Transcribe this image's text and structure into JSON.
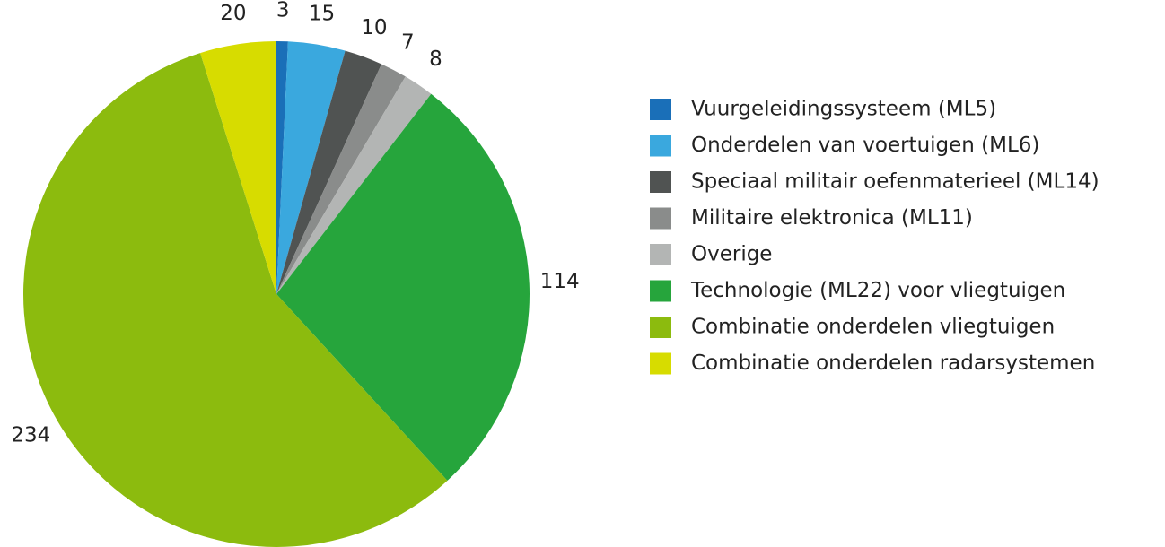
{
  "chart_data": {
    "type": "pie",
    "categories": [
      "Vuurgeleidingssysteem (ML5)",
      "Onderdelen van voertuigen (ML6)",
      "Speciaal militair oefenmaterieel (ML14)",
      "Militaire elektronica (ML11)",
      "Overige",
      "Technologie (ML22) voor vliegtuigen",
      "Combinatie onderdelen vliegtuigen",
      "Combinatie onderdelen radarsystemen"
    ],
    "values": [
      3,
      15,
      10,
      7,
      8,
      114,
      234,
      20
    ],
    "colors": [
      "#1a6fb8",
      "#3aa8de",
      "#505352",
      "#8a8c8b",
      "#b3b5b4",
      "#26a53c",
      "#8cbb0e",
      "#d7dc00"
    ],
    "legend": "right"
  }
}
